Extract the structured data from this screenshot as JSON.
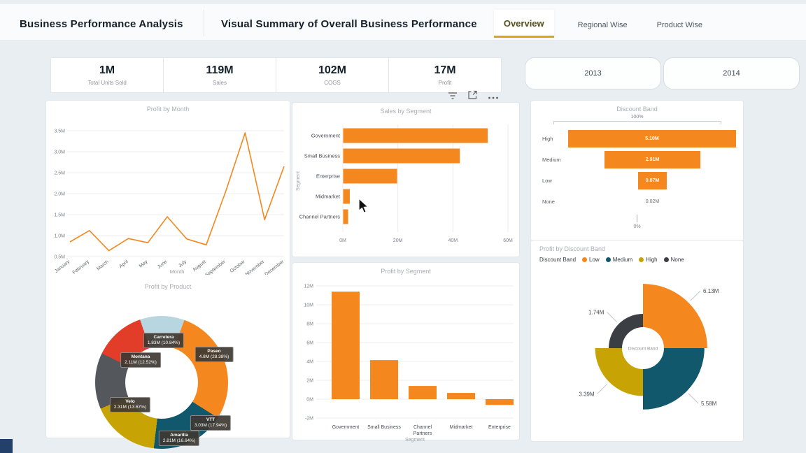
{
  "header": {
    "title": "Business Performance Analysis",
    "subtitle": "Visual Summary of Overall Business Performance",
    "tabs": [
      {
        "label": "Overview",
        "active": true
      },
      {
        "label": "Regional Wise",
        "active": false
      },
      {
        "label": "Product Wise",
        "active": false
      }
    ]
  },
  "kpis": [
    {
      "value": "1M",
      "label": "Total Units Sold"
    },
    {
      "value": "119M",
      "label": "Sales"
    },
    {
      "value": "102M",
      "label": "COGS"
    },
    {
      "value": "17M",
      "label": "Profit"
    }
  ],
  "year_buttons": [
    "2013",
    "2014"
  ],
  "visual_toolbar": {
    "icons": [
      "filter-icon",
      "focus-mode-icon",
      "more-options-icon"
    ]
  },
  "colors": {
    "accent_orange": "#f5871f",
    "teal": "#12586c",
    "gold": "#c7a303",
    "gray": "#54575c",
    "red": "#e23d28",
    "light_blue": "#b8d6e0",
    "dark_gray": "#3b3f44",
    "tab_underline": "#d9a616",
    "grid": "#ececec"
  },
  "chart_data": [
    {
      "id": "profit_by_month",
      "type": "line",
      "title": "Profit by Month",
      "xlabel": "Month",
      "x": [
        "January",
        "February",
        "March",
        "April",
        "May",
        "June",
        "July",
        "August",
        "September",
        "October",
        "November",
        "December"
      ],
      "values": [
        0.85,
        1.12,
        0.64,
        0.93,
        0.83,
        1.45,
        0.92,
        0.78,
        2.05,
        3.45,
        1.38,
        2.65
      ],
      "unit": "M",
      "ylim": [
        0.5,
        3.5
      ],
      "yticks": [
        3.5,
        3.0,
        2.5,
        2.0,
        1.5,
        1.0,
        0.5
      ]
    },
    {
      "id": "profit_by_product",
      "type": "donut",
      "title": "Profit by Product",
      "start_deg": -19,
      "slices": [
        {
          "name": "Carretera",
          "value": "1.83M",
          "pct": 10.84,
          "color": "light_blue"
        },
        {
          "name": "Paseo",
          "value": "4.8M",
          "pct": 28.38,
          "color": "accent_orange"
        },
        {
          "name": "VTT",
          "value": "3.03M",
          "pct": 17.94,
          "color": "teal"
        },
        {
          "name": "Amarilla",
          "value": "2.81M",
          "pct": 16.64,
          "color": "gold"
        },
        {
          "name": "Velo",
          "value": "2.31M",
          "pct": 13.67,
          "color": "gray"
        },
        {
          "name": "Montana",
          "value": "2.11M",
          "pct": 12.52,
          "color": "red"
        }
      ]
    },
    {
      "id": "sales_by_segment",
      "type": "bar-horizontal",
      "title": "Sales by Segment",
      "ylabel": "Segment",
      "categories": [
        "Government",
        "Small Business",
        "Enterprise",
        "Midmarket",
        "Channel Partners"
      ],
      "values": [
        52.5,
        42.4,
        19.6,
        2.4,
        1.8
      ],
      "xlim": [
        0,
        60
      ],
      "xticks": [
        0,
        20,
        40,
        60
      ],
      "unit": "M"
    },
    {
      "id": "profit_by_segment",
      "type": "bar-vertical",
      "title": "Profit by Segment",
      "xlabel": "Segment",
      "categories": [
        "Government",
        "Small Business",
        "Channel Partners",
        "Midmarket",
        "Enterprise"
      ],
      "values": [
        11.39,
        4.14,
        1.4,
        0.66,
        -0.61
      ],
      "ylim": [
        -2,
        12
      ],
      "yticks": [
        12,
        10,
        8,
        6,
        4,
        2,
        0,
        -2
      ],
      "unit": "M"
    },
    {
      "id": "discount_band_funnel",
      "type": "funnel",
      "title": "Discount Band",
      "top_marker": "100%",
      "bottom_marker": "0%",
      "categories": [
        "High",
        "Medium",
        "Low",
        "None"
      ],
      "labels": [
        "5.10M",
        "2.91M",
        "0.87M",
        "0.02M"
      ],
      "values": [
        5.1,
        2.91,
        0.87,
        0.02
      ]
    },
    {
      "id": "profit_by_discount_band",
      "type": "rose",
      "title": "Profit by Discount Band",
      "legend_title": "Discount Band",
      "center_label": "Discount Band",
      "slices": [
        {
          "name": "Low",
          "value": 6.13,
          "label": "6.13M",
          "color": "accent_orange"
        },
        {
          "name": "Medium",
          "value": 5.58,
          "label": "5.58M",
          "color": "teal"
        },
        {
          "name": "High",
          "value": 3.39,
          "label": "3.39M",
          "color": "gold"
        },
        {
          "name": "None",
          "value": 1.74,
          "label": "1.74M",
          "color": "dark_gray"
        }
      ]
    }
  ]
}
